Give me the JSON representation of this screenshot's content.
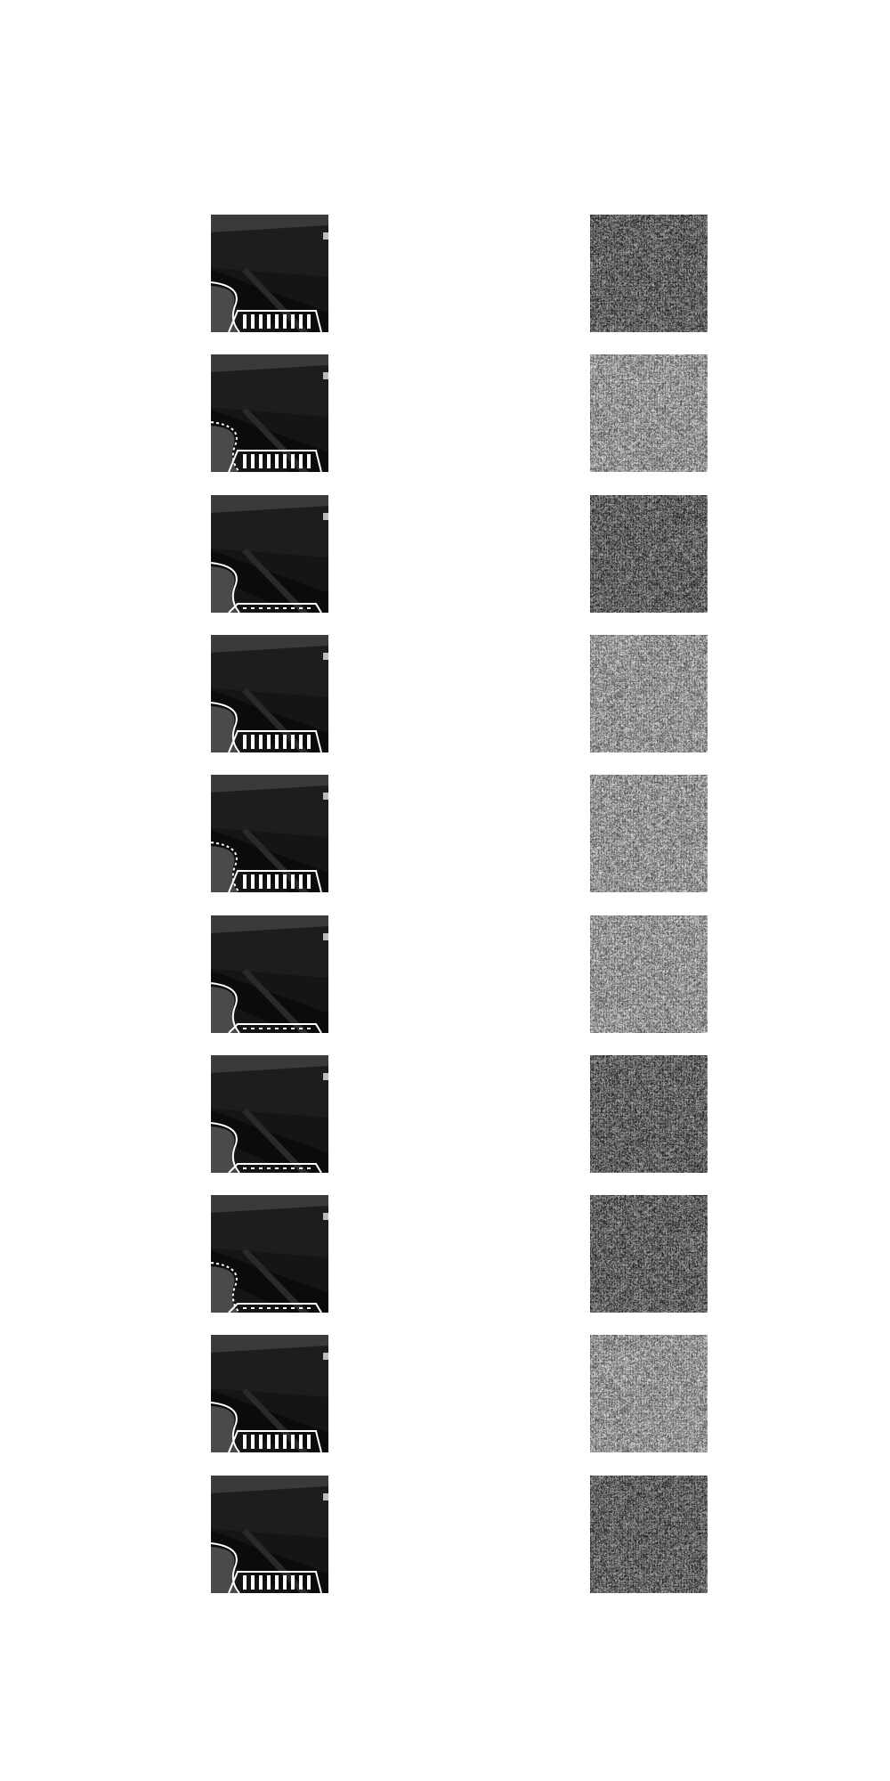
{
  "figure": {
    "columns": [
      {
        "role": "input-frame",
        "description_icon": "road-scene-frame"
      },
      {
        "role": "generated-output",
        "description_icon": "noise-pattern"
      }
    ],
    "rows": [
      {
        "index": 1,
        "crosswalk": "full",
        "output_tone": "dark"
      },
      {
        "index": 2,
        "crosswalk": "full",
        "output_tone": "light"
      },
      {
        "index": 3,
        "crosswalk": "partial",
        "output_tone": "dark"
      },
      {
        "index": 4,
        "crosswalk": "full",
        "output_tone": "light"
      },
      {
        "index": 5,
        "crosswalk": "full",
        "output_tone": "light"
      },
      {
        "index": 6,
        "crosswalk": "partial",
        "output_tone": "light"
      },
      {
        "index": 7,
        "crosswalk": "partial",
        "output_tone": "dark"
      },
      {
        "index": 8,
        "crosswalk": "partial",
        "output_tone": "dark"
      },
      {
        "index": 9,
        "crosswalk": "full",
        "output_tone": "light"
      },
      {
        "index": 10,
        "crosswalk": "full",
        "output_tone": "dark"
      }
    ],
    "colors": {
      "background": "#ffffff",
      "road": "#151515",
      "verge": "#4a4a4a",
      "marking": "#ffffff",
      "noise_dark": "#6a6a6a",
      "noise_light": "#a8a8a8"
    }
  }
}
